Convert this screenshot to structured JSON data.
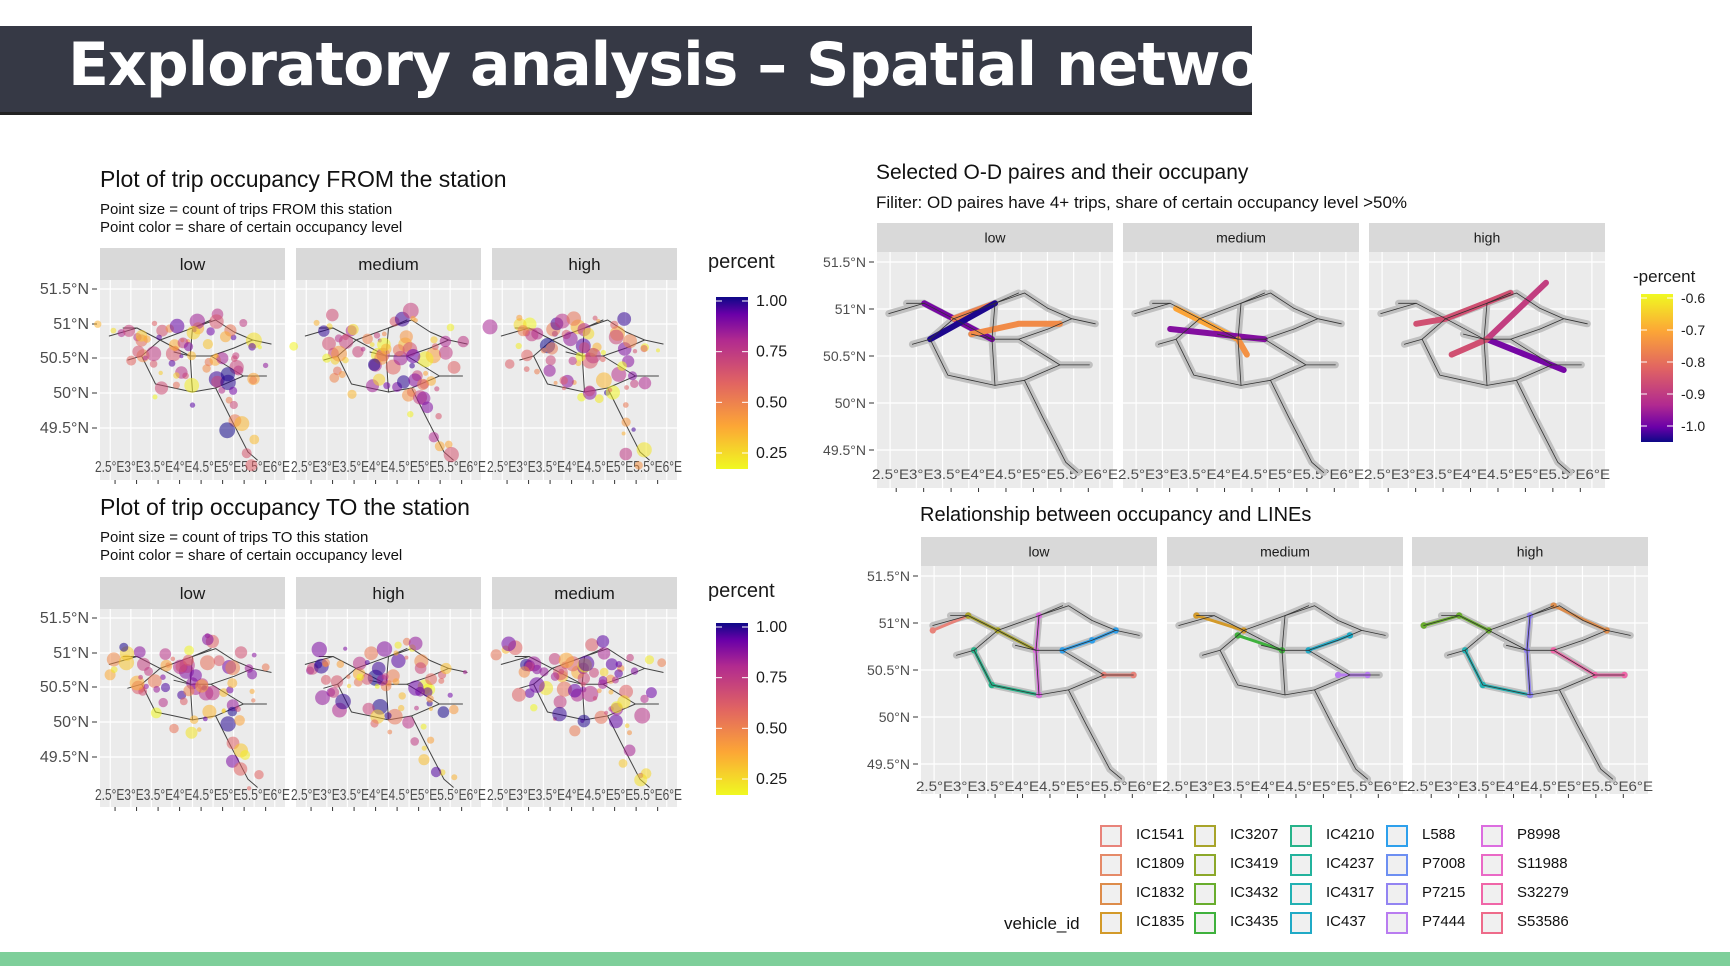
{
  "slide": {
    "title": "Exploratory analysis – Spatial network"
  },
  "colors": {
    "title_bar": "#363945",
    "footer_bar": "#7ecf9a",
    "panel_bg": "#ebebeb",
    "strip_bg": "#d9d9d9",
    "network_grey": "#bebebe"
  },
  "chart_data": [
    {
      "id": "from",
      "type": "scatter",
      "title": "Plot of trip occupancy FROM the station",
      "subtitle_lines": [
        "Point size = count of trips FROM this station",
        "Point color = share of certain occupancy level"
      ],
      "facets": [
        "low",
        "medium",
        "high"
      ],
      "y_ticks": [
        "51.5°N",
        "51°N",
        "50.5°N",
        "50°N",
        "49.5°N"
      ],
      "x_ticks": [
        "2.5°E",
        "3°E",
        "3.5°E",
        "4°E",
        "4.5°E",
        "5°E",
        "5.5°E",
        "6°E"
      ],
      "x_tick_text": "2.5°E3°E3.5°E4°E4.5°E5°E5.5°E6°E",
      "ylim": [
        49.3,
        51.8
      ],
      "xlim": [
        2.4,
        6.4
      ],
      "legend": {
        "title": "percent",
        "ticks": [
          "1.00",
          "0.75",
          "0.50",
          "0.25"
        ],
        "scale": "plasma"
      }
    },
    {
      "id": "to",
      "type": "scatter",
      "title": "Plot of trip occupancy TO the station",
      "subtitle_lines": [
        "Point size = count of trips TO this station",
        "Point color = share of certain occupancy level"
      ],
      "facets": [
        "low",
        "high",
        "medium"
      ],
      "y_ticks": [
        "51.5°N",
        "51°N",
        "50.5°N",
        "50°N",
        "49.5°N"
      ],
      "x_ticks": [
        "2.5°E",
        "3°E",
        "3.5°E",
        "4°E",
        "4.5°E",
        "5°E",
        "5.5°E",
        "6°E"
      ],
      "x_tick_text": "2.5°E3°E3.5°E4°E4.5°E5°E5.5°E6°E",
      "ylim": [
        49.3,
        51.8
      ],
      "xlim": [
        2.4,
        6.4
      ],
      "legend": {
        "title": "percent",
        "ticks": [
          "1.00",
          "0.75",
          "0.50",
          "0.25"
        ],
        "scale": "plasma"
      }
    },
    {
      "id": "od",
      "type": "line",
      "title": "Selected O-D paires and their occupany",
      "subtitle_lines": [
        "Filiter: OD paires have 4+ trips, share of certain occupancy level >50%"
      ],
      "facets": [
        "low",
        "medium",
        "high"
      ],
      "y_ticks": [
        "51.5°N",
        "51°N",
        "50.5°N",
        "50°N",
        "49.5°N"
      ],
      "x_ticks": [
        "2.5°E",
        "3°E",
        "3.5°E",
        "4°E",
        "4.5°E",
        "5°E",
        "5.5°E",
        "6°E"
      ],
      "x_tick_text": "2.5°E3°E3.5°E4°E4.5°E5°E5.5°E6°E",
      "ylim": [
        49.4,
        51.7
      ],
      "xlim": [
        2.4,
        6.4
      ],
      "legend": {
        "title": "-percent",
        "ticks": [
          "-0.6",
          "-0.7",
          "-0.8",
          "-0.9",
          "-1.0"
        ],
        "scale": "plasma-reversed"
      }
    },
    {
      "id": "lines",
      "type": "line",
      "title": "Relationship between occupancy and LINEs",
      "subtitle_lines": [],
      "facets": [
        "low",
        "medium",
        "high"
      ],
      "y_ticks": [
        "51.5°N",
        "51°N",
        "50.5°N",
        "50°N",
        "49.5°N"
      ],
      "x_ticks": [
        "2.5°E",
        "3°E",
        "3.5°E",
        "4°E",
        "4.5°E",
        "5°E",
        "5.5°E",
        "6°E"
      ],
      "x_tick_text": "2.5°E3°E3.5°E4°E4.5°E5°E5.5°E6°E",
      "ylim": [
        49.4,
        51.7
      ],
      "xlim": [
        2.4,
        6.4
      ],
      "legend": {
        "title": "vehicle_id",
        "columns": [
          [
            {
              "id": "IC1541",
              "color": "#e8837a"
            },
            {
              "id": "IC1809",
              "color": "#e58a68"
            },
            {
              "id": "IC1832",
              "color": "#dd8c4b"
            },
            {
              "id": "IC1835",
              "color": "#d39a2a"
            }
          ],
          [
            {
              "id": "IC3207",
              "color": "#a8a42a"
            },
            {
              "id": "IC3419",
              "color": "#8ca82a"
            },
            {
              "id": "IC3432",
              "color": "#69ad2e"
            },
            {
              "id": "IC3435",
              "color": "#3fb13d"
            }
          ],
          [
            {
              "id": "IC4210",
              "color": "#27b38a"
            },
            {
              "id": "IC4237",
              "color": "#23b39d"
            },
            {
              "id": "IC4317",
              "color": "#22b1b3"
            },
            {
              "id": "IC437",
              "color": "#20aac6"
            }
          ],
          [
            {
              "id": "L588",
              "color": "#2ea0ec"
            },
            {
              "id": "P7008",
              "color": "#6d8ff2"
            },
            {
              "id": "P7215",
              "color": "#9384f2"
            },
            {
              "id": "P7444",
              "color": "#b97cf0"
            }
          ],
          [
            {
              "id": "P8998",
              "color": "#dc6de0"
            },
            {
              "id": "S11988",
              "color": "#ea69c6"
            },
            {
              "id": "S32279",
              "color": "#f066a8"
            },
            {
              "id": "S53586",
              "color": "#ee6b8a"
            }
          ]
        ]
      }
    }
  ]
}
